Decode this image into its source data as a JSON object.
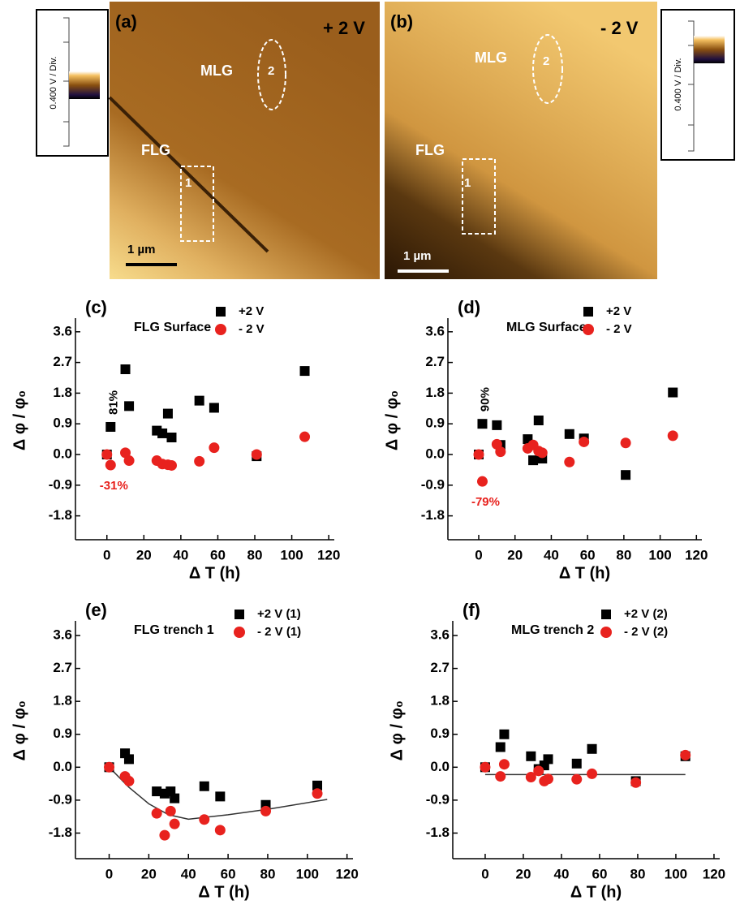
{
  "images": [
    {
      "panel": "(a)",
      "bias": "+ 2 V",
      "mlg": "MLG",
      "trench2": "2",
      "flg": "FLG",
      "trench1": "1",
      "scale": "1 µm",
      "colorbar": "0.400 V / Div."
    },
    {
      "panel": "(b)",
      "bias": "- 2 V",
      "mlg": "MLG",
      "trench2": "2",
      "flg": "FLG",
      "trench1": "1",
      "scale": "1 µm",
      "colorbar": "0.400 V / Div."
    }
  ],
  "chart_data": [
    {
      "type": "scatter",
      "panel": "(c)",
      "title": "FLG Surface",
      "x_label": "Δ T (h)",
      "y_label": "Δ φ / φ₀",
      "xlim": [
        -17,
        123
      ],
      "ylim": [
        -2.5,
        4.0
      ],
      "xticks": [
        0,
        20,
        40,
        60,
        80,
        100,
        120
      ],
      "yticks": [
        3.6,
        2.7,
        1.8,
        0.9,
        {
          "value": 0,
          "label": "0.0"
        },
        -0.9,
        -1.8
      ],
      "series": [
        {
          "name": "+2 V",
          "color": "#000000",
          "marker": "square",
          "x": [
            0,
            2,
            10,
            12,
            27,
            30,
            33,
            35,
            50,
            58,
            81,
            107
          ],
          "values": [
            0,
            0.81,
            2.5,
            1.42,
            0.7,
            0.62,
            1.2,
            0.5,
            1.58,
            1.37,
            -0.05,
            2.45
          ]
        },
        {
          "name": "- 2 V",
          "color": "#e8221e",
          "marker": "circle",
          "x": [
            0,
            2,
            10,
            12,
            27,
            30,
            33,
            35,
            50,
            58,
            81,
            107
          ],
          "values": [
            0,
            -0.31,
            0.05,
            -0.18,
            -0.18,
            -0.28,
            -0.3,
            -0.32,
            -0.2,
            0.2,
            0,
            0.52
          ]
        }
      ],
      "annotations": [
        {
          "text": "81%",
          "series": 0,
          "point": 1,
          "color": "#000000"
        },
        {
          "text": "-31%",
          "series": 1,
          "point": 1,
          "color": "#e8221e"
        }
      ]
    },
    {
      "type": "scatter",
      "panel": "(d)",
      "title": "MLG Surface",
      "x_label": "Δ T (h)",
      "y_label": "Δ φ / φ₀",
      "xlim": [
        -17,
        123
      ],
      "ylim": [
        -2.5,
        4.0
      ],
      "xticks": [
        0,
        20,
        40,
        60,
        80,
        100,
        120
      ],
      "yticks": [
        3.6,
        2.7,
        1.8,
        0.9,
        {
          "value": 0,
          "label": "0.0"
        },
        -0.9,
        -1.8
      ],
      "series": [
        {
          "name": "+2 V",
          "color": "#000000",
          "marker": "square",
          "x": [
            0,
            2,
            10,
            12,
            27,
            30,
            33,
            35,
            50,
            58,
            81,
            107
          ],
          "values": [
            0,
            0.9,
            0.86,
            0.28,
            0.45,
            -0.17,
            1.0,
            -0.12,
            0.6,
            0.47,
            -0.6,
            1.82
          ]
        },
        {
          "name": "- 2 V",
          "color": "#e8221e",
          "marker": "circle",
          "x": [
            0,
            2,
            10,
            12,
            27,
            30,
            33,
            35,
            50,
            58,
            81,
            107
          ],
          "values": [
            0,
            -0.79,
            0.3,
            0.08,
            0.18,
            0.28,
            0.1,
            0.05,
            -0.22,
            0.37,
            0.34,
            0.55
          ]
        }
      ],
      "annotations": [
        {
          "text": "90%",
          "series": 0,
          "point": 1,
          "color": "#000000"
        },
        {
          "text": "-79%",
          "series": 1,
          "point": 1,
          "color": "#e8221e"
        }
      ]
    },
    {
      "type": "scatter",
      "panel": "(e)",
      "title": "FLG trench 1",
      "x_label": "Δ T (h)",
      "y_label": "Δ φ / φ₀",
      "xlim": [
        -17,
        123
      ],
      "ylim": [
        -2.5,
        4.0
      ],
      "xticks": [
        0,
        20,
        40,
        60,
        80,
        100,
        120
      ],
      "yticks": [
        3.6,
        2.7,
        1.8,
        0.9,
        {
          "value": 0,
          "label": "0.0"
        },
        -0.9,
        -1.8
      ],
      "series": [
        {
          "name": "+2 V (1)",
          "color": "#000000",
          "marker": "square",
          "x": [
            0,
            8,
            10,
            24,
            28,
            31,
            33,
            48,
            56,
            79,
            105
          ],
          "values": [
            0,
            0.38,
            0.22,
            -0.66,
            -0.72,
            -0.66,
            -0.85,
            -0.52,
            -0.8,
            -1.03,
            -0.5
          ]
        },
        {
          "name": "- 2 V (1)",
          "color": "#e8221e",
          "marker": "circle",
          "x": [
            0,
            8,
            10,
            24,
            28,
            31,
            33,
            48,
            56,
            79,
            105
          ],
          "values": [
            0,
            -0.25,
            -0.38,
            -1.26,
            -1.86,
            -1.2,
            -1.55,
            -1.43,
            -1.72,
            -1.2,
            -0.72
          ]
        }
      ],
      "fit": {
        "color": "#333333",
        "x": [
          0,
          10,
          20,
          30,
          40,
          60,
          80,
          110
        ],
        "values": [
          0,
          -0.55,
          -1.0,
          -1.3,
          -1.42,
          -1.3,
          -1.15,
          -0.88
        ]
      }
    },
    {
      "type": "scatter",
      "panel": "(f)",
      "title": "MLG trench 2",
      "x_label": "Δ T (h)",
      "y_label": "Δ φ / φ₀",
      "xlim": [
        -17,
        123
      ],
      "ylim": [
        -2.5,
        4.0
      ],
      "xticks": [
        0,
        20,
        40,
        60,
        80,
        100,
        120
      ],
      "yticks": [
        3.6,
        2.7,
        1.8,
        0.9,
        {
          "value": 0,
          "label": "0.0"
        },
        -0.9,
        -1.8
      ],
      "series": [
        {
          "name": "+2 V (2)",
          "color": "#000000",
          "marker": "square",
          "x": [
            0,
            8,
            10,
            24,
            28,
            31,
            33,
            48,
            56,
            79,
            105
          ],
          "values": [
            0,
            0.55,
            0.9,
            0.3,
            -0.05,
            0.05,
            0.22,
            0.1,
            0.5,
            -0.38,
            0.3
          ]
        },
        {
          "name": "- 2 V (2)",
          "color": "#e8221e",
          "marker": "circle",
          "x": [
            0,
            8,
            10,
            24,
            28,
            31,
            33,
            48,
            56,
            79,
            105
          ],
          "values": [
            0,
            -0.25,
            0.08,
            -0.27,
            -0.1,
            -0.38,
            -0.32,
            -0.33,
            -0.18,
            -0.42,
            0.33
          ]
        }
      ],
      "fit": {
        "color": "#333333",
        "x": [
          0,
          105
        ],
        "values": [
          -0.2,
          -0.2
        ]
      }
    }
  ]
}
